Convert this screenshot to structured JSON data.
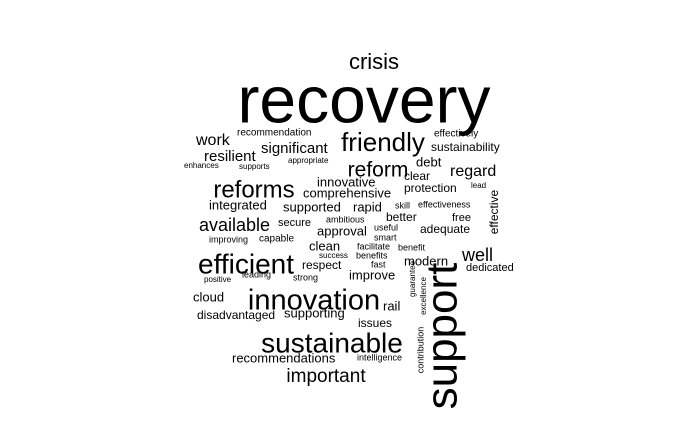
{
  "words": [
    {
      "text": "recovery",
      "weight": 66
    },
    {
      "text": "crisis",
      "weight": 22
    },
    {
      "text": "friendly",
      "weight": 26
    },
    {
      "text": "effectively",
      "weight": 10
    },
    {
      "text": "sustainability",
      "weight": 12
    },
    {
      "text": "work",
      "weight": 16
    },
    {
      "text": "recommendation",
      "weight": 10
    },
    {
      "text": "resilient",
      "weight": 15
    },
    {
      "text": "significant",
      "weight": 15
    },
    {
      "text": "reform",
      "weight": 21
    },
    {
      "text": "debt",
      "weight": 13
    },
    {
      "text": "regard",
      "weight": 16
    },
    {
      "text": "enhances",
      "weight": 8
    },
    {
      "text": "supports",
      "weight": 8
    },
    {
      "text": "appropriate",
      "weight": 8
    },
    {
      "text": "clear",
      "weight": 12
    },
    {
      "text": "reforms",
      "weight": 24
    },
    {
      "text": "innovative",
      "weight": 13
    },
    {
      "text": "protection",
      "weight": 12
    },
    {
      "text": "lead",
      "weight": 8
    },
    {
      "text": "comprehensive",
      "weight": 13
    },
    {
      "text": "integrated",
      "weight": 13
    },
    {
      "text": "supported",
      "weight": 13
    },
    {
      "text": "rapid",
      "weight": 13
    },
    {
      "text": "skill",
      "weight": 9
    },
    {
      "text": "effectiveness",
      "weight": 9
    },
    {
      "text": "better",
      "weight": 12
    },
    {
      "text": "free",
      "weight": 11
    },
    {
      "text": "available",
      "weight": 18
    },
    {
      "text": "secure",
      "weight": 11
    },
    {
      "text": "ambitious",
      "weight": 9
    },
    {
      "text": "useful",
      "weight": 9
    },
    {
      "text": "approval",
      "weight": 13
    },
    {
      "text": "adequate",
      "weight": 12
    },
    {
      "text": "improving",
      "weight": 9
    },
    {
      "text": "capable",
      "weight": 10
    },
    {
      "text": "smart",
      "weight": 9
    },
    {
      "text": "effective",
      "weight": 12
    },
    {
      "text": "efficient",
      "weight": 28
    },
    {
      "text": "clean",
      "weight": 13
    },
    {
      "text": "facilitate",
      "weight": 9
    },
    {
      "text": "benefit",
      "weight": 9
    },
    {
      "text": "well",
      "weight": 18
    },
    {
      "text": "success",
      "weight": 8
    },
    {
      "text": "benefits",
      "weight": 9
    },
    {
      "text": "respect",
      "weight": 12
    },
    {
      "text": "modern",
      "weight": 13
    },
    {
      "text": "dedicated",
      "weight": 11
    },
    {
      "text": "positive",
      "weight": 8
    },
    {
      "text": "leading",
      "weight": 9
    },
    {
      "text": "strong",
      "weight": 9
    },
    {
      "text": "fast",
      "weight": 9
    },
    {
      "text": "improve",
      "weight": 13
    },
    {
      "text": "guarantee",
      "weight": 8
    },
    {
      "text": "innovation",
      "weight": 29
    },
    {
      "text": "cloud",
      "weight": 13
    },
    {
      "text": "excellence",
      "weight": 8
    },
    {
      "text": "rail",
      "weight": 13
    },
    {
      "text": "support",
      "weight": 44
    },
    {
      "text": "disadvantaged",
      "weight": 12
    },
    {
      "text": "supporting",
      "weight": 13
    },
    {
      "text": "issues",
      "weight": 12
    },
    {
      "text": "contribution",
      "weight": 9
    },
    {
      "text": "sustainable",
      "weight": 28
    },
    {
      "text": "recommendations",
      "weight": 13
    },
    {
      "text": "intelligence",
      "weight": 9
    },
    {
      "text": "important",
      "weight": 19
    }
  ]
}
